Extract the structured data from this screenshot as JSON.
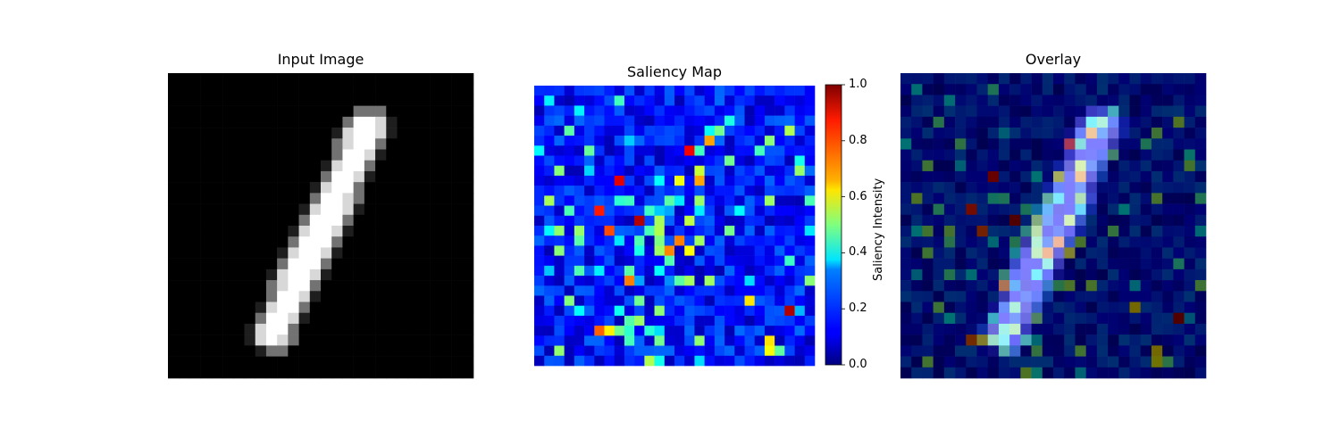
{
  "chart_data": [
    {
      "type": "heatmap",
      "title": "Input Image",
      "grid_size": 28,
      "colormap": "gray",
      "value_range": [
        0,
        1
      ],
      "description_of_content": "handwritten digit one, diagonal stroke"
    },
    {
      "type": "heatmap",
      "title": "Saliency Map",
      "grid_size": 28,
      "colormap": "jet",
      "value_range": [
        0,
        1
      ],
      "colorbar": {
        "label": "Saliency Intensity",
        "ticks": [
          "0.0",
          "0.2",
          "0.4",
          "0.6",
          "0.8",
          "1.0"
        ]
      }
    },
    {
      "type": "heatmap",
      "title": "Overlay",
      "grid_size": 28,
      "colormap": "jet",
      "value_range": [
        0,
        1
      ]
    }
  ],
  "colors": {
    "jet_low": "#00007f",
    "jet_mid": "#7fff7f",
    "jet_high": "#7f0000"
  }
}
